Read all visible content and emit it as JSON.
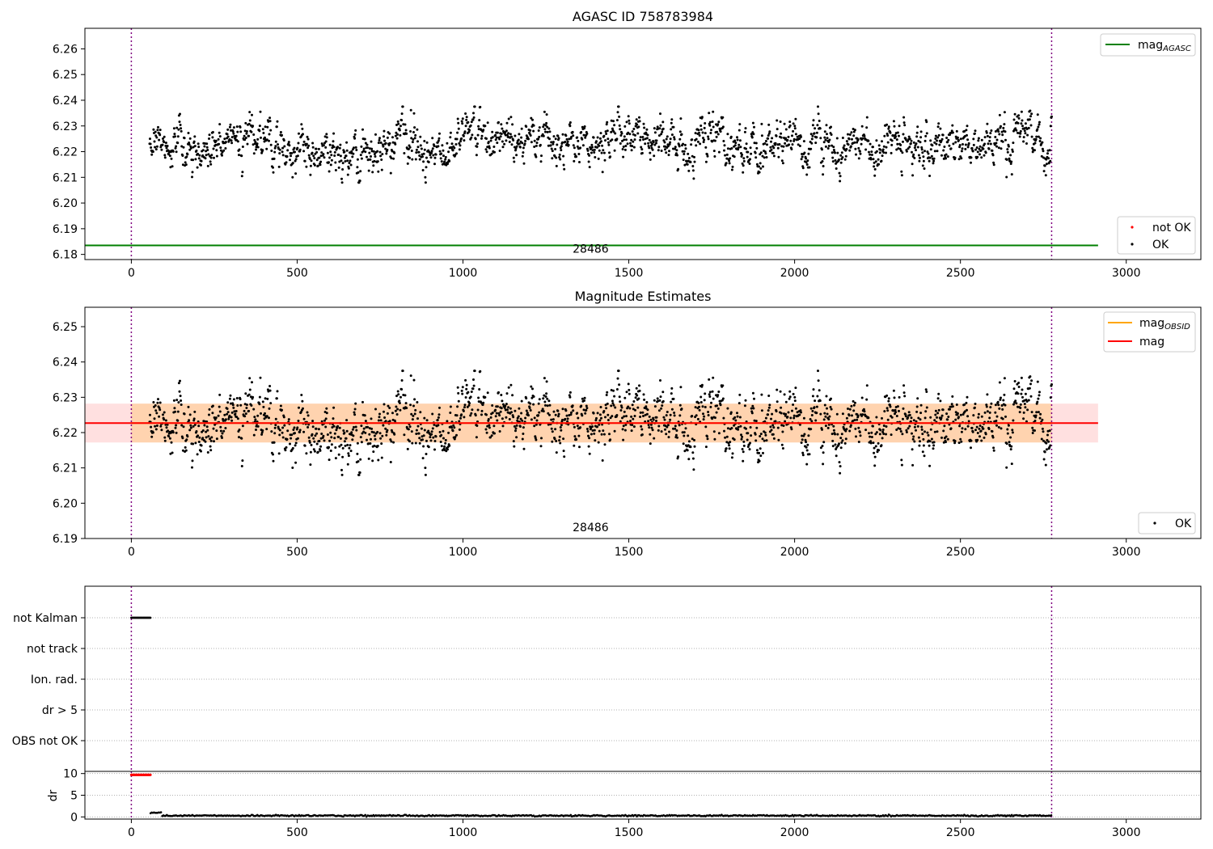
{
  "chart_data": [
    {
      "type": "scatter",
      "title": "AGASC ID 758783984",
      "xlim": [
        -140,
        3225
      ],
      "ylim": [
        6.178,
        6.268
      ],
      "xticks": [
        "0",
        "500",
        "1000",
        "1500",
        "2000",
        "2500",
        "3000"
      ],
      "yticks": [
        "6.18",
        "6.19",
        "6.20",
        "6.21",
        "6.22",
        "6.23",
        "6.24",
        "6.25",
        "6.26"
      ],
      "mag_agasc": 6.1835,
      "mag_agasc_x_range": [
        -140,
        2915
      ],
      "obsid_boundaries": [
        0,
        2775
      ],
      "obs_label": "28486",
      "obs_label_x": 1385,
      "legend_lines": [
        {
          "label_main": "mag",
          "label_sub": "AGASC",
          "color": "#008000"
        }
      ],
      "legend_markers": [
        {
          "label": "not OK",
          "color": "#ff0000"
        },
        {
          "label": "OK",
          "color": "#000000"
        }
      ],
      "series": [
        {
          "name": "OK",
          "color": "#000000",
          "x_range": [
            55,
            2775
          ],
          "n_points": 2020,
          "mean": 6.2225,
          "spread": 0.0055
        }
      ]
    },
    {
      "type": "scatter",
      "title": "Magnitude Estimates",
      "xlim": [
        -140,
        3225
      ],
      "ylim": [
        6.19,
        6.2555
      ],
      "xticks": [
        "0",
        "500",
        "1000",
        "1500",
        "2000",
        "2500",
        "3000"
      ],
      "yticks": [
        "6.19",
        "6.20",
        "6.21",
        "6.22",
        "6.23",
        "6.24",
        "6.25"
      ],
      "mag_obsid": 6.2227,
      "mag": 6.2227,
      "mag_band": [
        6.2172,
        6.2282
      ],
      "mag_x_range": [
        -140,
        2915
      ],
      "obsid_band_x_range": [
        0,
        2775
      ],
      "obsid_boundaries": [
        0,
        2775
      ],
      "obs_label": "28486",
      "obs_label_x": 1385,
      "legend_lines": [
        {
          "label_main": "mag",
          "label_sub": "OBSID",
          "color": "#ffa500"
        },
        {
          "label_main": "mag",
          "label_sub": "",
          "color": "#ff0000"
        }
      ],
      "legend_markers": [
        {
          "label": "OK",
          "color": "#000000"
        }
      ],
      "series": [
        {
          "name": "OK",
          "color": "#000000",
          "x_range": [
            55,
            2775
          ],
          "n_points": 2020,
          "mean": 6.2225,
          "spread": 0.0055
        }
      ]
    },
    {
      "type": "scatter",
      "title": "",
      "xlim": [
        -140,
        3225
      ],
      "categories": [
        "not Kalman",
        "not track",
        "Ion. rad.",
        "dr > 5",
        "OBS not OK"
      ],
      "flags": [
        {
          "category": "not Kalman",
          "x_range": [
            0,
            58
          ],
          "color": "#000000"
        }
      ],
      "obsid_boundaries": [
        0,
        2775
      ]
    },
    {
      "type": "scatter",
      "title": "",
      "xlim": [
        -140,
        3225
      ],
      "ylim": [
        -0.5,
        10.5
      ],
      "ylabel": "dr",
      "xticks": [
        "0",
        "500",
        "1000",
        "1500",
        "2000",
        "2500",
        "3000"
      ],
      "yticks": [
        "0",
        "5",
        "10"
      ],
      "obsid_boundaries": [
        0,
        2775
      ],
      "series": [
        {
          "name": "not OK",
          "color": "#ff0000",
          "x_range": [
            0,
            58
          ],
          "value": 9.7
        },
        {
          "name": "OK",
          "color": "#000000",
          "x_range": [
            58,
            2775
          ],
          "mean": 0.3
        }
      ]
    }
  ]
}
